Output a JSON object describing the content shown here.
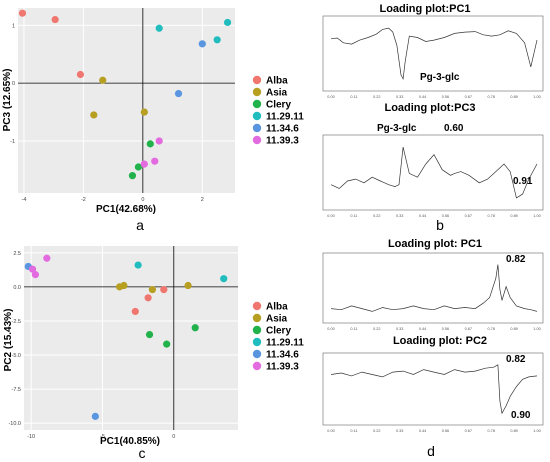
{
  "legend": [
    {
      "label": "Alba",
      "color": "#F0776F"
    },
    {
      "label": "Asia",
      "color": "#B79F22"
    },
    {
      "label": "Clery",
      "color": "#21B24B"
    },
    {
      "label": "11.29.11",
      "color": "#21BDBE"
    },
    {
      "label": "11.34.6",
      "color": "#5A95E0"
    },
    {
      "label": "11.39.3",
      "color": "#E36BE0"
    }
  ],
  "panel_labels": {
    "a": "a",
    "b": "b",
    "c": "c",
    "d": "d"
  },
  "chart_data": [
    {
      "id": "a",
      "type": "scatter",
      "xlabel": "PC1(42.68%)",
      "ylabel": "PC3 (12.65%)",
      "xlim": [
        -4.2,
        3.1
      ],
      "ylim": [
        -1.9,
        1.3
      ],
      "xticks": [
        "-4",
        "-2",
        "0",
        "2"
      ],
      "yticks": [
        "1",
        "0",
        "-1"
      ],
      "series": [
        {
          "name": "Alba",
          "points": [
            [
              -4.05,
              1.21
            ],
            [
              -2.95,
              1.1
            ],
            [
              -2.1,
              0.15
            ]
          ]
        },
        {
          "name": "Asia",
          "points": [
            [
              -1.35,
              0.05
            ],
            [
              -1.65,
              -0.55
            ],
            [
              0.05,
              -0.5
            ]
          ]
        },
        {
          "name": "Clery",
          "points": [
            [
              0.25,
              -1.05
            ],
            [
              -0.15,
              -1.45
            ],
            [
              -0.35,
              -1.6
            ]
          ]
        },
        {
          "name": "11.29.11",
          "points": [
            [
              0.55,
              0.95
            ],
            [
              2.5,
              0.75
            ],
            [
              2.85,
              1.05
            ]
          ]
        },
        {
          "name": "11.34.6",
          "points": [
            [
              1.2,
              -0.18
            ],
            [
              2.0,
              0.68
            ]
          ]
        },
        {
          "name": "11.39.3",
          "points": [
            [
              0.55,
              -1.0
            ],
            [
              0.4,
              -1.35
            ],
            [
              0.05,
              -1.4
            ]
          ]
        }
      ]
    },
    {
      "id": "b-top",
      "type": "line",
      "title": "Loading plot:PC1",
      "annotations": [
        "Pg-3-glc"
      ],
      "xticks": [
        "0.00",
        "0.11",
        "0.22",
        "0.33",
        "0.44",
        "0.56",
        "0.67",
        "0.78",
        "0.89",
        "1.00"
      ],
      "series": [
        {
          "x": [
            0.0,
            0.03,
            0.06,
            0.1,
            0.14,
            0.18,
            0.22,
            0.25,
            0.28,
            0.3,
            0.32,
            0.34,
            0.35,
            0.36,
            0.38,
            0.42,
            0.46,
            0.5,
            0.55,
            0.6,
            0.65,
            0.7,
            0.74,
            0.78,
            0.82,
            0.86,
            0.9,
            0.94,
            0.97,
            1.0
          ],
          "y": [
            0.45,
            0.48,
            0.3,
            0.25,
            0.4,
            0.5,
            0.62,
            0.8,
            0.85,
            0.7,
            0.2,
            -0.9,
            -1.05,
            -0.4,
            0.55,
            0.5,
            0.35,
            0.4,
            0.5,
            0.65,
            0.7,
            0.72,
            0.6,
            0.55,
            0.6,
            0.75,
            0.65,
            0.3,
            -0.6,
            0.4
          ]
        }
      ]
    },
    {
      "id": "b-bottom",
      "type": "line",
      "title": "Loading plot:PC3",
      "annotations": [
        "Pg-3-glc",
        "0.60",
        "0.91"
      ],
      "xticks": [
        "0.00",
        "0.11",
        "0.22",
        "0.33",
        "0.44",
        "0.56",
        "0.67",
        "0.78",
        "0.89",
        "1.00"
      ],
      "series": [
        {
          "x": [
            0.0,
            0.04,
            0.08,
            0.12,
            0.16,
            0.2,
            0.24,
            0.28,
            0.31,
            0.33,
            0.35,
            0.38,
            0.42,
            0.46,
            0.5,
            0.54,
            0.58,
            0.6,
            0.63,
            0.67,
            0.72,
            0.76,
            0.8,
            0.84,
            0.87,
            0.9,
            0.93,
            0.96,
            1.0
          ],
          "y": [
            -0.25,
            -0.35,
            -0.15,
            -0.1,
            -0.2,
            -0.05,
            -0.15,
            -0.25,
            -0.3,
            -0.25,
            0.75,
            0.05,
            -0.05,
            0.3,
            0.55,
            0.15,
            0.0,
            0.05,
            0.1,
            0.0,
            -0.2,
            -0.1,
            0.1,
            0.3,
            0.1,
            -0.6,
            -0.5,
            -0.1,
            0.3
          ]
        }
      ]
    },
    {
      "id": "c",
      "type": "scatter",
      "xlabel": "PC1(40.85%)",
      "ylabel": "PC2 (15.43%)",
      "xlim": [
        -10.5,
        4.5
      ],
      "ylim": [
        -10.5,
        3
      ],
      "xticks": [
        "-10",
        "-5",
        "0"
      ],
      "yticks": [
        "2.5",
        "0.0",
        "-2.5",
        "-5.0",
        "-7.5",
        "-10.0"
      ],
      "series": [
        {
          "name": "Alba",
          "points": [
            [
              -1.8,
              -0.8
            ],
            [
              -0.7,
              -0.2
            ],
            [
              -2.7,
              -1.8
            ]
          ]
        },
        {
          "name": "Asia",
          "points": [
            [
              -3.5,
              0.1
            ],
            [
              -3.8,
              0.0
            ],
            [
              1.0,
              0.1
            ],
            [
              -1.5,
              -0.2
            ]
          ]
        },
        {
          "name": "Clery",
          "points": [
            [
              -1.7,
              -3.5
            ],
            [
              -0.5,
              -4.2
            ],
            [
              1.5,
              -3.0
            ]
          ]
        },
        {
          "name": "11.29.11",
          "points": [
            [
              -2.5,
              1.6
            ],
            [
              3.5,
              0.6
            ]
          ]
        },
        {
          "name": "11.34.6",
          "points": [
            [
              -10.2,
              1.5
            ],
            [
              -5.5,
              -9.5
            ]
          ]
        },
        {
          "name": "11.39.3",
          "points": [
            [
              -9.9,
              1.3
            ],
            [
              -9.7,
              0.9
            ],
            [
              -8.9,
              2.1
            ]
          ]
        }
      ]
    },
    {
      "id": "d-top",
      "type": "line",
      "title": "Loading plot: PC1",
      "annotations": [
        "0.82"
      ],
      "xticks": [
        "0.00",
        "0.11",
        "0.22",
        "0.33",
        "0.44",
        "0.56",
        "0.67",
        "0.78",
        "0.89",
        "1.00"
      ],
      "series": [
        {
          "x": [
            0.0,
            0.05,
            0.1,
            0.15,
            0.2,
            0.25,
            0.3,
            0.35,
            0.4,
            0.45,
            0.5,
            0.55,
            0.6,
            0.65,
            0.7,
            0.74,
            0.77,
            0.8,
            0.81,
            0.82,
            0.83,
            0.85,
            0.87,
            0.9,
            0.94,
            0.97,
            1.0
          ],
          "y": [
            -0.2,
            -0.22,
            -0.15,
            -0.2,
            -0.25,
            -0.18,
            -0.22,
            -0.2,
            -0.15,
            -0.2,
            -0.22,
            -0.15,
            -0.2,
            -0.18,
            -0.2,
            -0.1,
            0.0,
            0.35,
            0.6,
            0.15,
            -0.05,
            0.2,
            0.0,
            -0.15,
            -0.2,
            -0.22,
            -0.25
          ]
        }
      ]
    },
    {
      "id": "d-bottom",
      "type": "line",
      "title": "Loading plot: PC2",
      "annotations": [
        "0.82",
        "0.90"
      ],
      "xticks": [
        "0.00",
        "0.11",
        "0.22",
        "0.33",
        "0.44",
        "0.56",
        "0.67",
        "0.78",
        "0.89",
        "1.00"
      ],
      "series": [
        {
          "x": [
            0.0,
            0.05,
            0.1,
            0.15,
            0.2,
            0.25,
            0.3,
            0.35,
            0.4,
            0.45,
            0.5,
            0.55,
            0.6,
            0.65,
            0.7,
            0.75,
            0.79,
            0.81,
            0.82,
            0.83,
            0.85,
            0.87,
            0.9,
            0.93,
            0.96,
            1.0
          ],
          "y": [
            0.15,
            0.18,
            0.12,
            0.2,
            0.15,
            0.1,
            0.2,
            0.22,
            0.15,
            0.25,
            0.2,
            0.15,
            0.25,
            0.2,
            0.22,
            0.28,
            0.3,
            0.35,
            -0.4,
            -0.65,
            -0.5,
            -0.3,
            -0.1,
            0.05,
            0.1,
            0.12
          ]
        }
      ]
    }
  ]
}
